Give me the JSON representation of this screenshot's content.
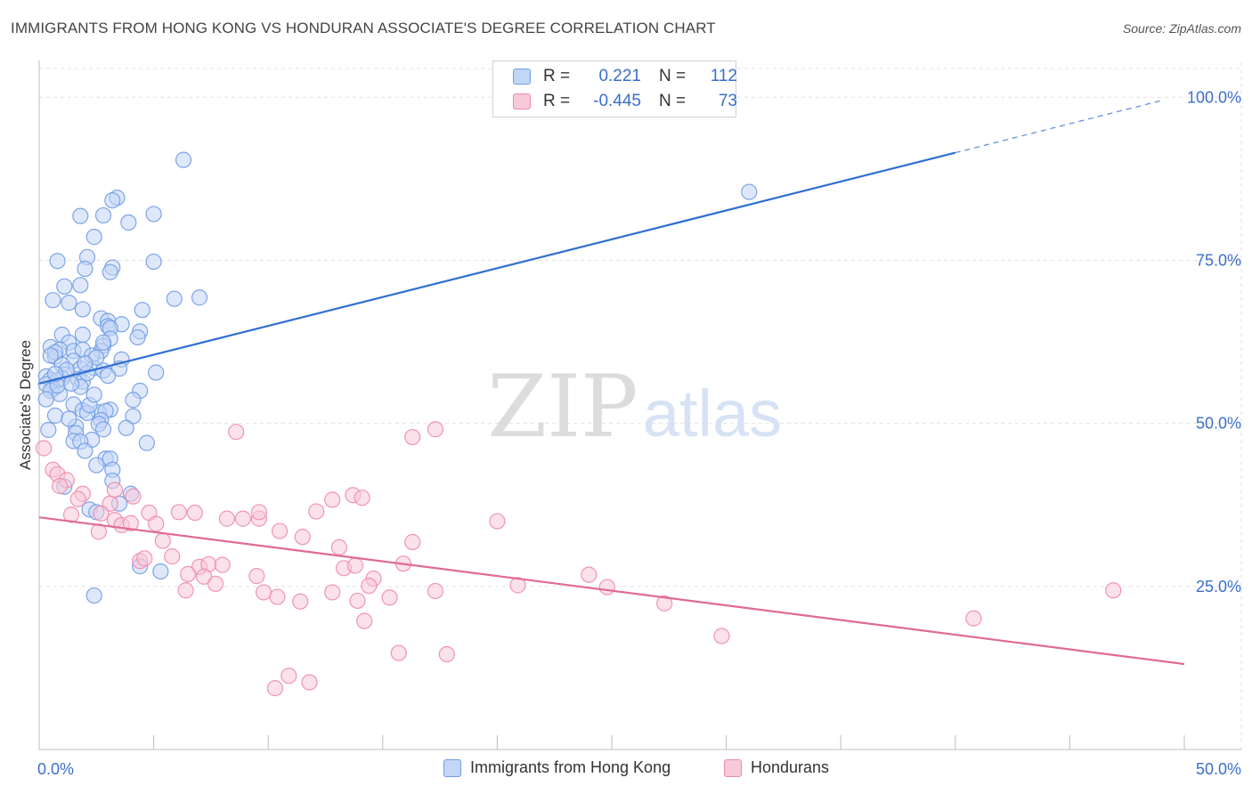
{
  "title": "IMMIGRANTS FROM HONG KONG VS HONDURAN ASSOCIATE'S DEGREE CORRELATION CHART",
  "source": "Source: ZipAtlas.com",
  "watermark": {
    "zip": "ZIP",
    "atlas": "atlas"
  },
  "legend": {
    "rows": [
      {
        "r_label": "R =",
        "r_value": "0.221",
        "n_label": "N =",
        "n_value": "112",
        "color": "#6f9be6",
        "fill": "#c2d6f6"
      },
      {
        "r_label": "R =",
        "r_value": "-0.445",
        "n_label": "N =",
        "n_value": "73",
        "color": "#ee8bab",
        "fill": "#f8c9d8"
      }
    ]
  },
  "bottom_legend": [
    {
      "label": "Immigrants from Hong Kong",
      "color": "#6f9be6",
      "fill": "#c2d6f6"
    },
    {
      "label": "Hondurans",
      "color": "#ee8bab",
      "fill": "#f8c9d8"
    }
  ],
  "chart_data": {
    "type": "scatter",
    "title": "IMMIGRANTS FROM HONG KONG VS HONDURAN ASSOCIATE'S DEGREE CORRELATION CHART",
    "xlabel": "",
    "ylabel": "Associate's Degree",
    "xlim": [
      0,
      50
    ],
    "ylim": [
      0,
      104
    ],
    "x_tick_labels": [
      {
        "value": 0,
        "label": "0.0%"
      },
      {
        "value": 50,
        "label": "50.0%"
      }
    ],
    "y_tick_labels": [
      {
        "value": 25,
        "label": "25.0%"
      },
      {
        "value": 50,
        "label": "50.0%"
      },
      {
        "value": 75,
        "label": "75.0%"
      },
      {
        "value": 100,
        "label": "100.0%"
      }
    ],
    "x_minor_ticks": [
      0,
      5,
      10,
      15,
      20,
      25,
      30,
      35,
      40,
      45,
      50
    ],
    "grid": true,
    "series": [
      {
        "name": "Immigrants from Hong Kong",
        "color": "#6f9be6",
        "fill": "#c2d6f6",
        "trend": {
          "x0": 0,
          "y0": 56.1,
          "x1": 40,
          "y1": 91.5,
          "dashed_to_x": 49,
          "dashed_to_y": 99.5,
          "color": "#2f6fd0"
        },
        "points": [
          [
            6.3,
            90.4
          ],
          [
            31.0,
            85.5
          ],
          [
            3.4,
            84.6
          ],
          [
            3.2,
            84.2
          ],
          [
            1.8,
            81.8
          ],
          [
            2.8,
            81.9
          ],
          [
            5.0,
            82.1
          ],
          [
            3.9,
            80.8
          ],
          [
            2.4,
            78.6
          ],
          [
            0.8,
            74.9
          ],
          [
            2.1,
            75.5
          ],
          [
            5.0,
            74.8
          ],
          [
            2.0,
            73.7
          ],
          [
            3.2,
            73.9
          ],
          [
            3.1,
            73.2
          ],
          [
            1.8,
            71.2
          ],
          [
            1.1,
            71.0
          ],
          [
            7.0,
            69.3
          ],
          [
            0.6,
            68.9
          ],
          [
            1.3,
            68.5
          ],
          [
            5.9,
            69.1
          ],
          [
            1.9,
            67.5
          ],
          [
            4.5,
            67.4
          ],
          [
            2.7,
            66.1
          ],
          [
            3.0,
            65.7
          ],
          [
            3.6,
            65.2
          ],
          [
            3.0,
            64.9
          ],
          [
            3.1,
            64.6
          ],
          [
            4.4,
            64.1
          ],
          [
            1.0,
            63.6
          ],
          [
            1.9,
            63.6
          ],
          [
            3.1,
            63.0
          ],
          [
            1.3,
            62.4
          ],
          [
            2.8,
            61.9
          ],
          [
            0.5,
            61.7
          ],
          [
            2.7,
            61.1
          ],
          [
            0.9,
            61.3
          ],
          [
            1.5,
            61.1
          ],
          [
            1.9,
            61.3
          ],
          [
            0.7,
            60.2
          ],
          [
            2.3,
            60.4
          ],
          [
            3.6,
            59.8
          ],
          [
            1.5,
            59.6
          ],
          [
            1.0,
            59.0
          ],
          [
            1.8,
            58.4
          ],
          [
            2.4,
            58.5
          ],
          [
            2.8,
            58.1
          ],
          [
            5.1,
            57.8
          ],
          [
            1.1,
            57.5
          ],
          [
            0.3,
            57.2
          ],
          [
            1.0,
            56.9
          ],
          [
            1.7,
            56.8
          ],
          [
            0.5,
            56.7
          ],
          [
            0.8,
            56.6
          ],
          [
            1.9,
            56.4
          ],
          [
            0.6,
            55.3
          ],
          [
            0.3,
            56.0
          ],
          [
            1.8,
            55.6
          ],
          [
            0.5,
            55.0
          ],
          [
            4.4,
            55.0
          ],
          [
            0.9,
            54.5
          ],
          [
            4.1,
            53.6
          ],
          [
            0.3,
            53.7
          ],
          [
            1.5,
            52.9
          ],
          [
            1.9,
            52.0
          ],
          [
            3.1,
            52.1
          ],
          [
            2.6,
            51.7
          ],
          [
            2.9,
            51.9
          ],
          [
            2.1,
            51.6
          ],
          [
            0.7,
            51.2
          ],
          [
            4.1,
            51.1
          ],
          [
            2.7,
            50.5
          ],
          [
            1.6,
            49.5
          ],
          [
            2.6,
            49.9
          ],
          [
            3.8,
            49.3
          ],
          [
            2.8,
            49.1
          ],
          [
            0.4,
            49.0
          ],
          [
            1.6,
            48.5
          ],
          [
            2.3,
            47.5
          ],
          [
            1.5,
            47.3
          ],
          [
            1.8,
            47.2
          ],
          [
            4.7,
            47.0
          ],
          [
            2.0,
            45.8
          ],
          [
            2.9,
            44.6
          ],
          [
            3.1,
            44.6
          ],
          [
            2.5,
            43.6
          ],
          [
            3.2,
            42.9
          ],
          [
            3.2,
            41.2
          ],
          [
            1.1,
            40.3
          ],
          [
            4.0,
            39.2
          ],
          [
            2.2,
            36.8
          ],
          [
            2.5,
            36.4
          ],
          [
            3.5,
            37.7
          ],
          [
            4.4,
            28.1
          ],
          [
            5.3,
            27.3
          ],
          [
            2.4,
            23.6
          ],
          [
            0.7,
            60.9
          ],
          [
            2.1,
            57.7
          ],
          [
            1.2,
            58.2
          ],
          [
            0.8,
            55.8
          ],
          [
            3.5,
            58.4
          ],
          [
            2.8,
            62.4
          ],
          [
            1.4,
            56.1
          ],
          [
            2.5,
            60.1
          ],
          [
            4.3,
            63.2
          ],
          [
            0.7,
            57.6
          ],
          [
            3.0,
            57.3
          ],
          [
            2.2,
            52.8
          ],
          [
            1.3,
            50.7
          ],
          [
            2.4,
            54.4
          ],
          [
            0.5,
            60.4
          ],
          [
            2.0,
            59.2
          ]
        ]
      },
      {
        "name": "Hondurans",
        "color": "#ee8bab",
        "fill": "#f8c9d8",
        "trend": {
          "x0": 0,
          "y0": 35.6,
          "x1": 50,
          "y1": 13.1,
          "color": "#e06a93"
        },
        "points": [
          [
            0.2,
            46.2
          ],
          [
            0.6,
            42.9
          ],
          [
            0.8,
            42.2
          ],
          [
            1.2,
            41.3
          ],
          [
            0.9,
            40.4
          ],
          [
            1.9,
            39.2
          ],
          [
            3.3,
            39.8
          ],
          [
            4.1,
            38.8
          ],
          [
            1.7,
            38.4
          ],
          [
            3.1,
            37.7
          ],
          [
            2.7,
            36.2
          ],
          [
            1.4,
            36.0
          ],
          [
            3.3,
            35.2
          ],
          [
            4.8,
            36.3
          ],
          [
            6.1,
            36.4
          ],
          [
            6.8,
            36.3
          ],
          [
            8.2,
            35.4
          ],
          [
            8.9,
            35.4
          ],
          [
            9.6,
            35.4
          ],
          [
            9.6,
            36.4
          ],
          [
            12.1,
            36.5
          ],
          [
            13.7,
            39.0
          ],
          [
            12.8,
            38.3
          ],
          [
            14.1,
            38.6
          ],
          [
            20.0,
            35.0
          ],
          [
            3.6,
            34.4
          ],
          [
            4.0,
            34.7
          ],
          [
            5.1,
            34.6
          ],
          [
            2.6,
            33.4
          ],
          [
            10.5,
            33.5
          ],
          [
            11.5,
            32.6
          ],
          [
            16.3,
            31.8
          ],
          [
            5.4,
            32.0
          ],
          [
            13.1,
            31.0
          ],
          [
            5.8,
            29.6
          ],
          [
            4.4,
            28.9
          ],
          [
            4.6,
            29.3
          ],
          [
            7.0,
            28.0
          ],
          [
            7.4,
            28.4
          ],
          [
            8.0,
            28.3
          ],
          [
            13.3,
            27.8
          ],
          [
            13.8,
            28.2
          ],
          [
            15.9,
            28.5
          ],
          [
            6.5,
            26.9
          ],
          [
            7.2,
            26.5
          ],
          [
            9.5,
            26.6
          ],
          [
            14.6,
            26.2
          ],
          [
            24.0,
            26.8
          ],
          [
            7.7,
            25.4
          ],
          [
            14.4,
            25.1
          ],
          [
            20.9,
            25.2
          ],
          [
            24.8,
            24.9
          ],
          [
            6.4,
            24.4
          ],
          [
            9.8,
            24.1
          ],
          [
            12.8,
            24.1
          ],
          [
            17.3,
            24.3
          ],
          [
            15.3,
            23.3
          ],
          [
            10.4,
            23.4
          ],
          [
            13.9,
            22.8
          ],
          [
            11.4,
            22.7
          ],
          [
            27.3,
            22.4
          ],
          [
            46.9,
            24.4
          ],
          [
            14.2,
            19.7
          ],
          [
            40.8,
            20.1
          ],
          [
            29.8,
            17.4
          ],
          [
            15.7,
            14.8
          ],
          [
            17.8,
            14.6
          ],
          [
            10.9,
            11.3
          ],
          [
            11.8,
            10.3
          ],
          [
            10.3,
            9.4
          ],
          [
            8.6,
            48.7
          ],
          [
            16.3,
            47.9
          ],
          [
            17.3,
            49.1
          ]
        ]
      }
    ]
  }
}
